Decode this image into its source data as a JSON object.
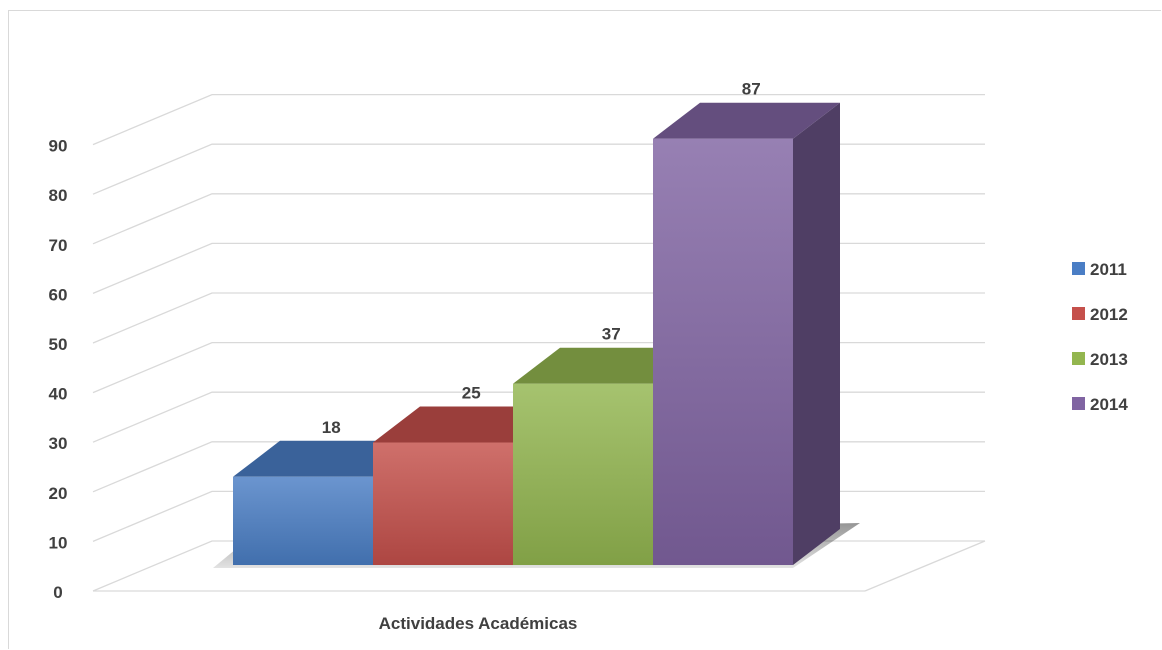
{
  "chart_data": {
    "type": "bar",
    "categories": [
      "Actividades  Académicas"
    ],
    "series": [
      {
        "name": "2011",
        "values": [
          18
        ],
        "color": "#4a7ec5"
      },
      {
        "name": "2012",
        "values": [
          25
        ],
        "color": "#c5504b"
      },
      {
        "name": "2013",
        "values": [
          37
        ],
        "color": "#93b64f"
      },
      {
        "name": "2014",
        "values": [
          87
        ],
        "color": "#8064a2"
      }
    ],
    "xlabel": "Actividades  Académicas",
    "ylim": [
      0,
      90
    ],
    "yticks": [
      "0",
      "10",
      "20",
      "30",
      "40",
      "50",
      "60",
      "70",
      "80",
      "90"
    ],
    "grid": true,
    "legend_position": "right",
    "three_d": true
  }
}
